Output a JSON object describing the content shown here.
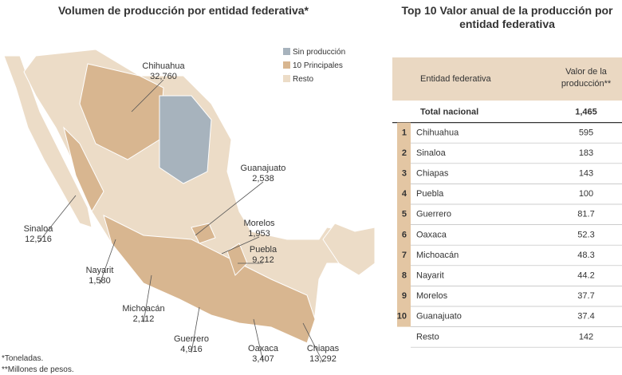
{
  "map": {
    "title": "Volumen de producción por entidad federativa*",
    "legend": [
      {
        "label": "Sin producción",
        "color": "#a7b3bd"
      },
      {
        "label": "10 Principales",
        "color": "#d8b690"
      },
      {
        "label": "Resto",
        "color": "#ecdcc7"
      }
    ],
    "labels": [
      {
        "name": "Chihuahua",
        "value": "32,760"
      },
      {
        "name": "Guanajuato",
        "value": "2,538"
      },
      {
        "name": "Sinaloa",
        "value": "12,516"
      },
      {
        "name": "Morelos",
        "value": "1,953"
      },
      {
        "name": "Puebla",
        "value": "9,212"
      },
      {
        "name": "Nayarit",
        "value": "1,580"
      },
      {
        "name": "Michoacán",
        "value": "2,112"
      },
      {
        "name": "Guerrero",
        "value": "4,916"
      },
      {
        "name": "Oaxaca",
        "value": "3,407"
      },
      {
        "name": "Chiapas",
        "value": "13,292"
      }
    ],
    "notes": [
      "*Toneladas.",
      "**Millones de pesos."
    ]
  },
  "table": {
    "title": "Top 10 Valor anual de la producción por entidad federativa",
    "headers": [
      "Entidad federativa",
      "Valor de la producción**"
    ],
    "total": {
      "label": "Total nacional",
      "value": "1,465"
    },
    "rows": [
      [
        "1",
        "Chihuahua",
        "595"
      ],
      [
        "2",
        "Sinaloa",
        "183"
      ],
      [
        "3",
        "Chiapas",
        "143"
      ],
      [
        "4",
        "Puebla",
        "100"
      ],
      [
        "5",
        "Guerrero",
        "81.7"
      ],
      [
        "6",
        "Oaxaca",
        "52.3"
      ],
      [
        "7",
        "Michoacán",
        "48.3"
      ],
      [
        "8",
        "Nayarit",
        "44.2"
      ],
      [
        "9",
        "Morelos",
        "37.7"
      ],
      [
        "10",
        "Guanajuato",
        "37.4"
      ]
    ],
    "rest": {
      "label": "Resto",
      "value": "142"
    }
  }
}
